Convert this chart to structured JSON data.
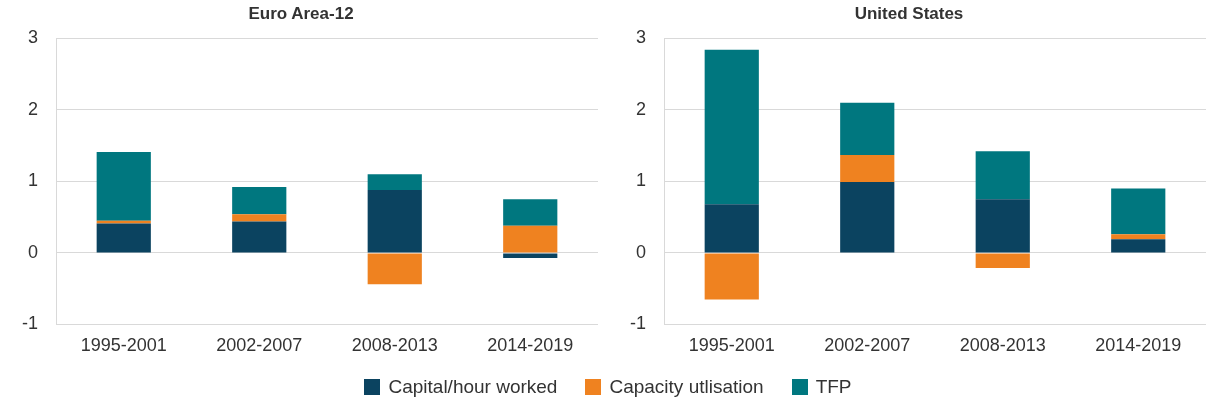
{
  "chart_data": [
    {
      "type": "bar",
      "title": "Euro Area-12",
      "stacked": true,
      "categories": [
        "1995-2001",
        "2002-2007",
        "2008-2013",
        "2014-2019"
      ],
      "ylim": [
        -1,
        3
      ],
      "yticks": [
        -1,
        0,
        1,
        2,
        3
      ],
      "grid": "y",
      "legend": "bottom",
      "series": [
        {
          "name": "Capital/hour worked",
          "color": "#0b4360",
          "values": [
            0.41,
            0.44,
            0.88,
            -0.07
          ]
        },
        {
          "name": "Capacity utlisation",
          "color": "#ef8220",
          "values": [
            0.04,
            0.1,
            -0.44,
            0.38
          ]
        },
        {
          "name": "TFP",
          "color": "#00777f",
          "values": [
            0.96,
            0.38,
            0.22,
            0.37
          ]
        }
      ]
    },
    {
      "type": "bar",
      "title": "United States",
      "stacked": true,
      "categories": [
        "1995-2001",
        "2002-2007",
        "2008-2013",
        "2014-2019"
      ],
      "ylim": [
        -1,
        3
      ],
      "yticks": [
        -1,
        0,
        1,
        2,
        3
      ],
      "grid": "y",
      "series": [
        {
          "color": "#0b4360",
          "values": [
            0.68,
            0.99,
            0.75,
            0.19
          ]
        },
        {
          "color": "#ef8220",
          "values": [
            -0.65,
            0.38,
            -0.21,
            0.07
          ]
        },
        {
          "color": "#00777f",
          "values": [
            2.16,
            0.73,
            0.67,
            0.64
          ]
        }
      ]
    }
  ]
}
